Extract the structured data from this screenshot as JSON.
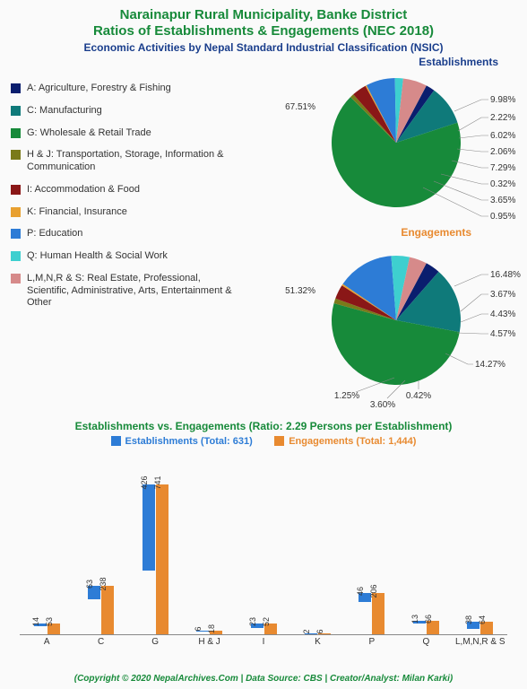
{
  "title_line1": "Narainapur Rural Municipality, Banke District",
  "title_line2": "Ratios of Establishments & Engagements (NEC 2018)",
  "subtitle": "Economic Activities by Nepal Standard Industrial Classification (NSIC)",
  "establishments_label": "Establishments",
  "engagements_label": "Engagements",
  "legend_items": [
    {
      "code": "A",
      "label": "A: Agriculture, Forestry & Fishing",
      "color": "#0a1e6e"
    },
    {
      "code": "C",
      "label": "C: Manufacturing",
      "color": "#0f7a7a"
    },
    {
      "code": "G",
      "label": "G: Wholesale & Retail Trade",
      "color": "#178a3a"
    },
    {
      "code": "H & J",
      "label": "H & J: Transportation, Storage, Information & Communication",
      "color": "#7a7a1a"
    },
    {
      "code": "I",
      "label": "I: Accommodation & Food",
      "color": "#8a1717"
    },
    {
      "code": "K",
      "label": "K: Financial, Insurance",
      "color": "#e8a030"
    },
    {
      "code": "P",
      "label": "P: Education",
      "color": "#2d7cd6"
    },
    {
      "code": "Q",
      "label": "Q: Human Health & Social Work",
      "color": "#3ecfcf"
    },
    {
      "code": "L,M,N,R & S",
      "label": "L,M,N,R & S: Real Estate, Professional, Scientific, Administrative, Arts, Entertainment & Other",
      "color": "#d68a8a"
    }
  ],
  "pie_establishments": {
    "values": [
      2.22,
      9.98,
      67.51,
      0.95,
      3.65,
      0.32,
      7.29,
      2.06,
      6.02
    ],
    "labels": [
      "2.22%",
      "9.98%",
      "67.51%",
      "0.95%",
      "3.65%",
      "0.32%",
      "7.29%",
      "2.06%",
      "6.02%"
    ]
  },
  "pie_engagements": {
    "values": [
      3.67,
      16.48,
      51.32,
      1.25,
      3.6,
      0.42,
      14.27,
      4.57,
      4.43
    ],
    "labels": [
      "3.67%",
      "16.48%",
      "51.32%",
      "1.25%",
      "3.60%",
      "0.42%",
      "14.27%",
      "4.57%",
      "4.43%"
    ]
  },
  "bar_chart": {
    "title": "Establishments vs. Engagements (Ratio: 2.29 Persons per Establishment)",
    "legend_est": "Establishments (Total: 631)",
    "legend_eng": "Engagements (Total: 1,444)",
    "est_color": "#2d7cd6",
    "eng_color": "#e88a30",
    "categories": [
      "A",
      "C",
      "G",
      "H & J",
      "I",
      "K",
      "P",
      "Q",
      "L,M,N,R & S"
    ],
    "establishments": [
      14,
      63,
      426,
      6,
      23,
      2,
      46,
      13,
      38
    ],
    "engagements": [
      53,
      238,
      741,
      18,
      52,
      6,
      206,
      66,
      64
    ],
    "ymax": 800
  },
  "footer": "(Copyright © 2020 NepalArchives.Com | Data Source: CBS | Creator/Analyst: Milan Karki)",
  "colors": {
    "title": "#178a3a",
    "subtitle": "#1a3e8c",
    "est_header": "#1a3e8c",
    "eng_header": "#e88a30"
  }
}
